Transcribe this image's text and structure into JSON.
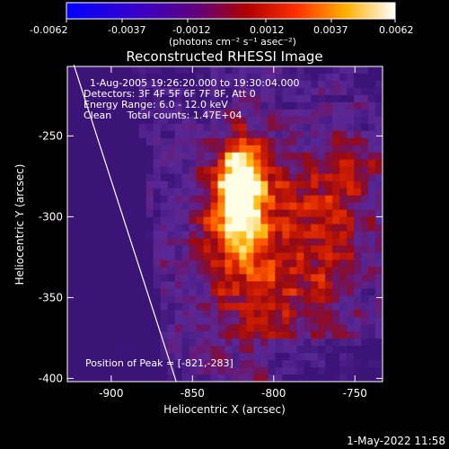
{
  "chart_data": {
    "type": "heatmap",
    "title": "Reconstructed RHESSI Image",
    "xlabel": "Heliocentric X (arcsec)",
    "ylabel": "Heliocentric Y (arcsec)",
    "xlim": [
      -927,
      -733
    ],
    "ylim": [
      -402,
      -207
    ],
    "x_ticks": [
      -900,
      -850,
      -800,
      -750
    ],
    "y_ticks": [
      -250,
      -300,
      -350,
      -400
    ],
    "colorbar": {
      "ticks": [
        "-0.0062",
        "-0.0037",
        "-0.0012",
        "0.0012",
        "0.0037",
        "0.0062"
      ],
      "range": [
        -0.0062,
        0.0062
      ],
      "label": "(photons cm⁻² s⁻¹ asec⁻²)"
    },
    "annotations": [
      "1-Aug-2005 19:26:20.000 to 19:30:04.000",
      "Detectors: 3F 4F 5F 6F 7F 8F, Att 0",
      "Energy Range: 6.0 - 12.0 keV",
      "Clean     Total counts: 1.47E+04"
    ],
    "peak_label": "Position of Peak = [-821,-283]",
    "peak": [
      -821,
      -283
    ],
    "limb_line": [
      [
        -923,
        -206
      ],
      [
        -860,
        -402
      ]
    ]
  },
  "footer": {
    "date": "1-May-2022 11:58"
  }
}
